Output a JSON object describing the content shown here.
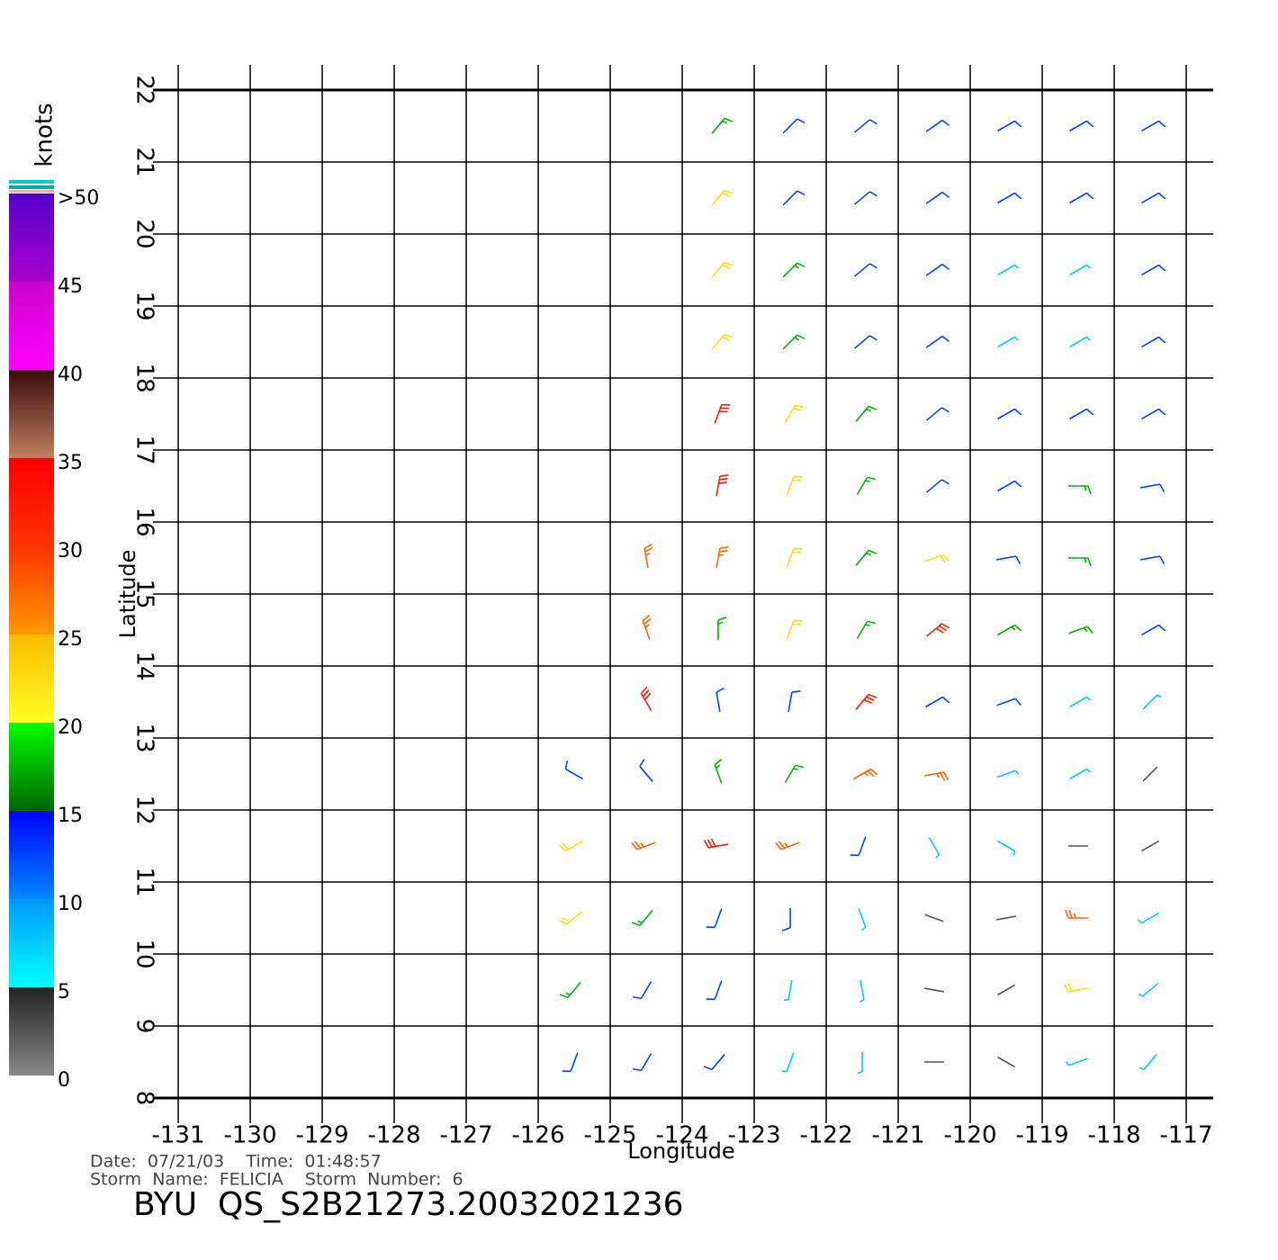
{
  "chart_data": {
    "type": "wind-barb",
    "xlabel": "Longitude",
    "ylabel": "Latitude",
    "xlim": [
      -131,
      -117
    ],
    "ylim": [
      8,
      22
    ],
    "xticks": [
      -131,
      -130,
      -129,
      -128,
      -127,
      -126,
      -125,
      -124,
      -123,
      -122,
      -121,
      -120,
      -119,
      -118,
      -117
    ],
    "yticks": [
      8,
      9,
      10,
      11,
      12,
      13,
      14,
      15,
      16,
      17,
      18,
      19,
      20,
      21,
      22
    ],
    "grid": true,
    "x": [
      -125.5,
      -124.5,
      -123.5,
      -122.5,
      -121.5,
      -120.5,
      -119.5,
      -118.5,
      -117.5,
      -125.5,
      -124.5,
      -123.5,
      -122.5,
      -121.5,
      -120.5,
      -119.5,
      -118.5,
      -117.5,
      -125.5,
      -124.5,
      -123.5,
      -122.5,
      -121.5,
      -120.5,
      -119.5,
      -118.5,
      -117.5,
      -125.5,
      -124.5,
      -123.5,
      -122.5,
      -121.5,
      -120.5,
      -119.5,
      -118.5,
      -117.5,
      -125.5,
      -124.5,
      -123.5,
      -122.5,
      -121.5,
      -120.5,
      -119.5,
      -118.5,
      -117.5,
      -124.5,
      -123.5,
      -122.5,
      -121.5,
      -120.5,
      -119.5,
      -118.5,
      -117.5,
      -124.5,
      -123.5,
      -122.5,
      -121.5,
      -120.5,
      -119.5,
      -118.5,
      -117.5,
      -124.5,
      -123.5,
      -122.5,
      -121.5,
      -120.5,
      -119.5,
      -118.5,
      -117.5,
      -123.5,
      -122.5,
      -121.5,
      -120.5,
      -119.5,
      -118.5,
      -117.5,
      -123.5,
      -122.5,
      -121.5,
      -120.5,
      -119.5,
      -118.5,
      -117.5,
      -123.5,
      -122.5,
      -121.5,
      -120.5,
      -119.5,
      -118.5,
      -117.5,
      -123.5,
      -122.5,
      -121.5,
      -120.5,
      -119.5,
      -118.5,
      -117.5,
      -123.5,
      -122.5,
      -121.5,
      -120.5,
      -119.5,
      -118.5,
      -117.5,
      -123.5,
      -122.5,
      -121.5,
      -120.5,
      -119.5,
      -118.5,
      -117.5
    ],
    "y": [
      8.5,
      8.5,
      8.5,
      8.5,
      8.5,
      8.5,
      8.5,
      8.5,
      8.5,
      9.5,
      9.5,
      9.5,
      9.5,
      9.5,
      9.5,
      9.5,
      9.5,
      9.5,
      10.5,
      10.5,
      10.5,
      10.5,
      10.5,
      10.5,
      10.5,
      10.5,
      10.5,
      11.5,
      11.5,
      11.5,
      11.5,
      11.5,
      11.5,
      11.5,
      11.5,
      11.5,
      12.5,
      12.5,
      12.5,
      12.5,
      12.5,
      12.5,
      12.5,
      12.5,
      12.5,
      13.5,
      13.5,
      13.5,
      13.5,
      13.5,
      13.5,
      13.5,
      13.5,
      14.5,
      14.5,
      14.5,
      14.5,
      14.5,
      14.5,
      14.5,
      14.5,
      15.5,
      15.5,
      15.5,
      15.5,
      15.5,
      15.5,
      15.5,
      15.5,
      16.5,
      16.5,
      16.5,
      16.5,
      16.5,
      16.5,
      16.5,
      17.5,
      17.5,
      17.5,
      17.5,
      17.5,
      17.5,
      17.5,
      18.5,
      18.5,
      18.5,
      18.5,
      18.5,
      18.5,
      18.5,
      19.5,
      19.5,
      19.5,
      19.5,
      19.5,
      19.5,
      19.5,
      20.5,
      20.5,
      20.5,
      20.5,
      20.5,
      20.5,
      20.5,
      21.5,
      21.5,
      21.5,
      21.5,
      21.5,
      21.5,
      21.5
    ],
    "speed": [
      14,
      12,
      10,
      8,
      6,
      3,
      3,
      8,
      6,
      18,
      14,
      10,
      8,
      7,
      3,
      3,
      22,
      7,
      20,
      16,
      11,
      14,
      8,
      4,
      3,
      28,
      8,
      22,
      28,
      30,
      26,
      12,
      7,
      6,
      4,
      3,
      13,
      12,
      16,
      17,
      27,
      29,
      8,
      5,
      3,
      30,
      14,
      14,
      33,
      13,
      12,
      8,
      6,
      28,
      15,
      20,
      19,
      30,
      16,
      16,
      10,
      26,
      25,
      22,
      17,
      20,
      13,
      19,
      11,
      33,
      24,
      19,
      14,
      12,
      19,
      12,
      31,
      22,
      15,
      12,
      11,
      12,
      13,
      24,
      18,
      12,
      10,
      9,
      9,
      12,
      22,
      16,
      12,
      10,
      9,
      8,
      12,
      21,
      14,
      11,
      11,
      10,
      12,
      11,
      18,
      13,
      11,
      11,
      11,
      11,
      11
    ],
    "direction": [
      200,
      210,
      220,
      200,
      180,
      90,
      120,
      250,
      220,
      220,
      210,
      200,
      190,
      170,
      100,
      60,
      260,
      230,
      230,
      220,
      200,
      180,
      160,
      110,
      80,
      270,
      240,
      240,
      250,
      260,
      250,
      200,
      150,
      120,
      90,
      60,
      300,
      320,
      340,
      30,
      60,
      80,
      70,
      60,
      45,
      330,
      350,
      10,
      40,
      60,
      70,
      60,
      45,
      340,
      0,
      20,
      30,
      50,
      60,
      70,
      60,
      350,
      10,
      20,
      40,
      70,
      80,
      90,
      80,
      10,
      20,
      30,
      50,
      60,
      90,
      80,
      20,
      30,
      40,
      50,
      60,
      60,
      60,
      40,
      45,
      50,
      55,
      60,
      60,
      60,
      40,
      45,
      50,
      55,
      60,
      60,
      60,
      40,
      45,
      50,
      55,
      60,
      60,
      60,
      40,
      45,
      50,
      55,
      60,
      60,
      60
    ],
    "colorbar": {
      "label": "knots",
      "ticks": [
        0,
        5,
        10,
        15,
        20,
        25,
        30,
        35,
        40,
        45,
        {
          "value": 50,
          "label": ">50"
        }
      ],
      "band_colors": [
        [
          "#888888",
          "#222222"
        ],
        [
          "#00ffff",
          "#0099ff"
        ],
        [
          "#0088ff",
          "#0000ff"
        ],
        [
          "#006600",
          "#00ff00"
        ],
        [
          "#ffff22",
          "#ffbb00"
        ],
        [
          "#ff9900",
          "#ff3300"
        ],
        [
          "#ff3300",
          "#ff0000"
        ],
        [
          "#c08060",
          "#3a0a0a"
        ],
        [
          "#ff00ff",
          "#cc00cc"
        ],
        [
          "#aa00cc",
          "#5500cc"
        ]
      ]
    }
  },
  "footer": {
    "date_line": "Date:  07/21/03    Time:  01:48:57",
    "storm_line": "Storm  Name:  FELICIA    Storm  Number:  6",
    "product": "BYU  QS_S2B21273.20032021236"
  }
}
